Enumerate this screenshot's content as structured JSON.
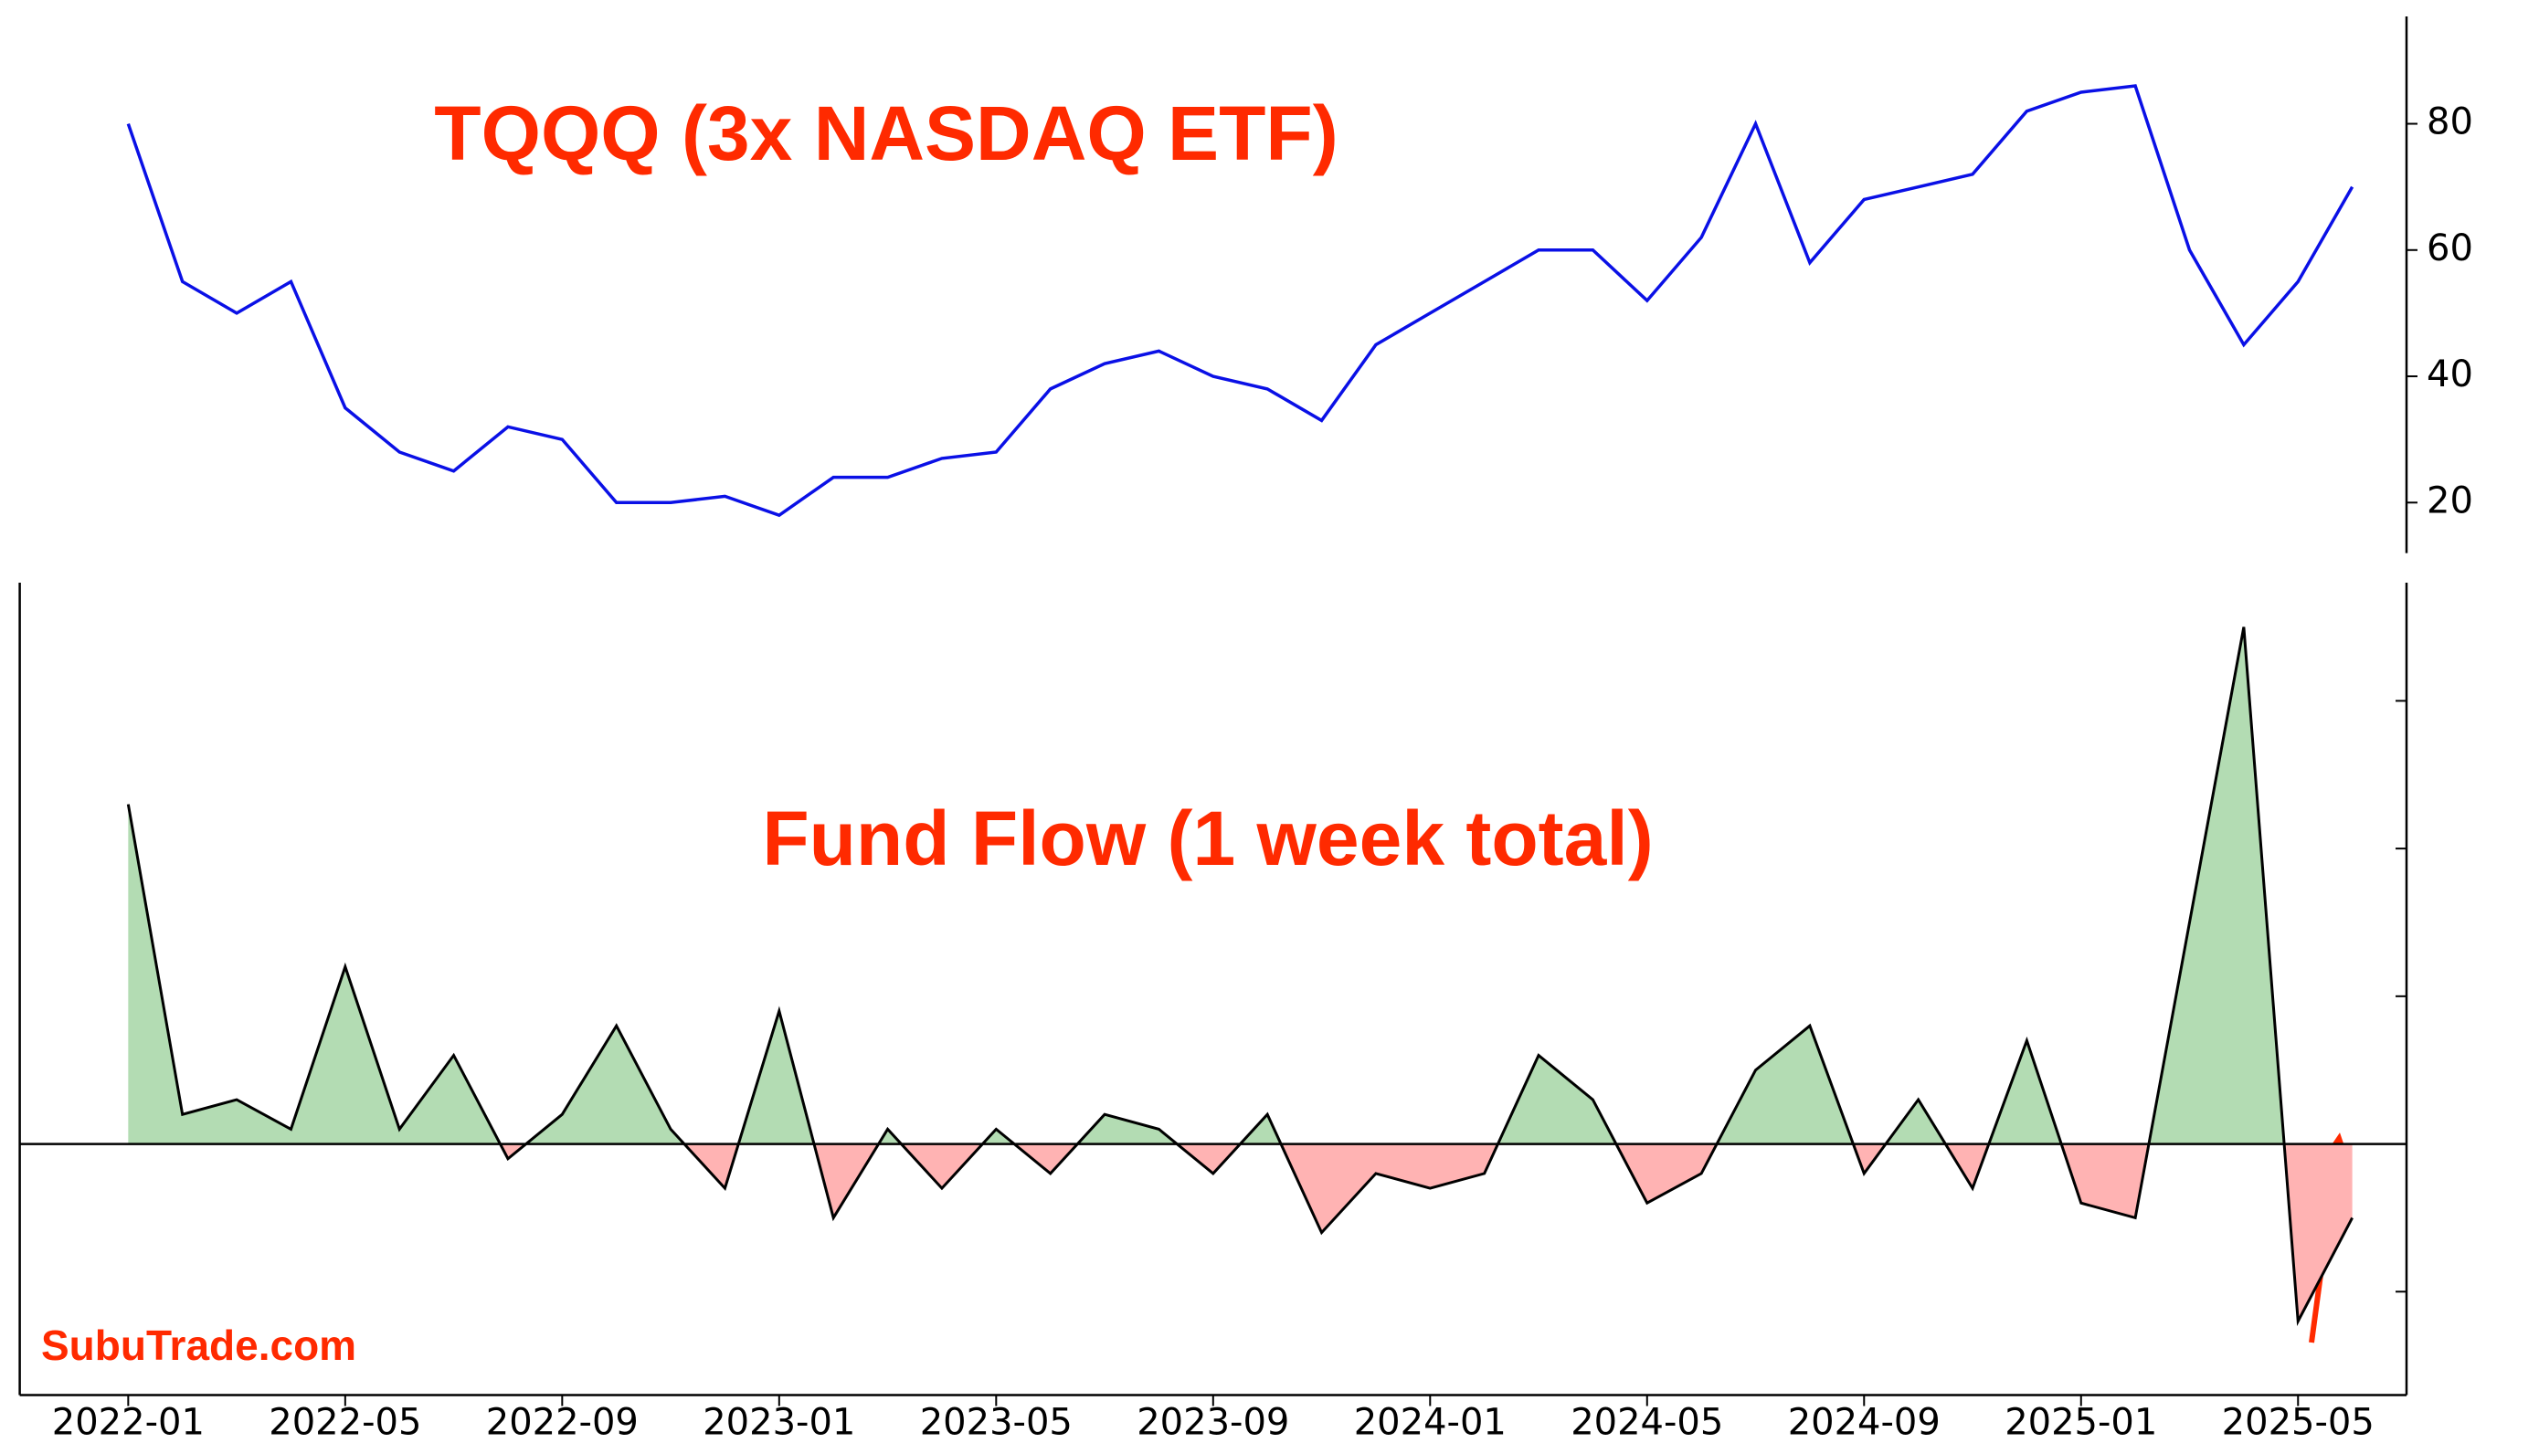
{
  "chart_data": [
    {
      "type": "line",
      "title": "TQQQ (3x NASDAQ ETF)",
      "x": [
        "2022-01",
        "2022-02",
        "2022-03",
        "2022-04",
        "2022-05",
        "2022-06",
        "2022-07",
        "2022-08",
        "2022-09",
        "2022-10",
        "2022-11",
        "2022-12",
        "2023-01",
        "2023-02",
        "2023-03",
        "2023-04",
        "2023-05",
        "2023-06",
        "2023-07",
        "2023-08",
        "2023-09",
        "2023-10",
        "2023-11",
        "2023-12",
        "2024-01",
        "2024-02",
        "2024-03",
        "2024-04",
        "2024-05",
        "2024-06",
        "2024-07",
        "2024-08",
        "2024-09",
        "2024-10",
        "2024-11",
        "2024-12",
        "2025-01",
        "2025-02",
        "2025-03",
        "2025-04",
        "2025-05",
        "2025-06"
      ],
      "series": [
        {
          "name": "TQQQ",
          "color": "#0a10e6",
          "values": [
            80,
            55,
            50,
            55,
            35,
            28,
            25,
            32,
            30,
            20,
            20,
            21,
            18,
            24,
            24,
            27,
            28,
            38,
            42,
            44,
            40,
            38,
            33,
            45,
            50,
            55,
            60,
            60,
            52,
            62,
            80,
            58,
            68,
            70,
            72,
            82,
            85,
            86,
            60,
            45,
            55,
            70
          ]
        }
      ],
      "xlim": [
        "2021-11",
        "2025-07"
      ],
      "ylim": [
        12,
        97
      ],
      "yticks": [
        20,
        40,
        60,
        80
      ]
    },
    {
      "type": "area",
      "title": "Fund Flow (1 week total)",
      "x": [
        "2022-01",
        "2022-02",
        "2022-03",
        "2022-04",
        "2022-05",
        "2022-06",
        "2022-07",
        "2022-08",
        "2022-09",
        "2022-10",
        "2022-11",
        "2022-12",
        "2023-01",
        "2023-02",
        "2023-03",
        "2023-04",
        "2023-05",
        "2023-06",
        "2023-07",
        "2023-08",
        "2023-09",
        "2023-10",
        "2023-11",
        "2023-12",
        "2024-01",
        "2024-02",
        "2024-03",
        "2024-04",
        "2024-05",
        "2024-06",
        "2024-07",
        "2024-08",
        "2024-09",
        "2024-10",
        "2024-11",
        "2024-12",
        "2025-01",
        "2025-02",
        "2025-03",
        "2025-04",
        "2025-05",
        "2025-06"
      ],
      "series": [
        {
          "name": "Fund Flow",
          "color": "#000000",
          "values": [
            2.3,
            0.2,
            0.3,
            0.1,
            1.2,
            0.1,
            0.6,
            -0.1,
            0.2,
            0.8,
            0.1,
            -0.3,
            0.9,
            -0.5,
            0.1,
            -0.3,
            0.1,
            -0.2,
            0.2,
            0.1,
            -0.2,
            0.2,
            -0.6,
            -0.2,
            -0.3,
            -0.2,
            0.6,
            0.3,
            -0.4,
            -0.2,
            0.5,
            0.8,
            -0.2,
            0.3,
            -0.3,
            0.7,
            -0.4,
            -0.5,
            1.5,
            3.5,
            -1.2,
            -0.5
          ]
        }
      ],
      "positive_color": "#b3dcb3",
      "negative_color": "#ffb3b3",
      "xlim": [
        "2021-11",
        "2025-07"
      ],
      "ylim": [
        -1.7,
        3.8
      ],
      "yticks": [
        -1,
        1,
        2,
        3
      ],
      "xticks": [
        "2022-01",
        "2022-05",
        "2022-09",
        "2023-01",
        "2023-05",
        "2023-09",
        "2024-01",
        "2024-05",
        "2024-09",
        "2025-01",
        "2025-05"
      ]
    }
  ],
  "watermark": "SubuTrade.com"
}
